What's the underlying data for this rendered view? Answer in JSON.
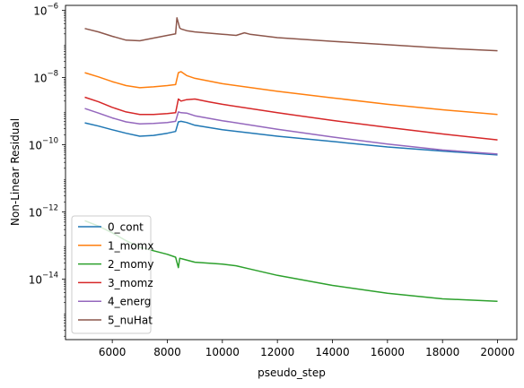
{
  "chart_data": {
    "type": "line",
    "xlabel": "pseudo_step",
    "ylabel": "Non-Linear Residual",
    "xlim": [
      4300,
      20700
    ],
    "ylim_log10": [
      -15.8,
      -5.85
    ],
    "yscale": "log",
    "grid": false,
    "legend_placement": "lower-left",
    "x_ticks": [
      6000,
      8000,
      10000,
      12000,
      14000,
      16000,
      18000,
      20000
    ],
    "x_tick_labels": [
      "6000",
      "8000",
      "10000",
      "12000",
      "14000",
      "16000",
      "18000",
      "20000"
    ],
    "y_ticks_log10": [
      -14,
      -12,
      -10,
      -8,
      -6
    ],
    "y_tick_bases": [
      "10",
      "10",
      "10",
      "10",
      "10"
    ],
    "y_tick_exponents": [
      "−14",
      "−12",
      "−10",
      "−8",
      "−6"
    ],
    "series": [
      {
        "name": "0_cont",
        "color": "#1f77b4",
        "x": [
          5000,
          5500,
          6000,
          6500,
          7000,
          7500,
          8000,
          8300,
          8400,
          8500,
          8700,
          9000,
          10000,
          12000,
          14000,
          16000,
          18000,
          20000
        ],
        "y": [
          4.5e-10,
          3.6e-10,
          2.8e-10,
          2.2e-10,
          1.8e-10,
          1.9e-10,
          2.2e-10,
          2.5e-10,
          4.8e-10,
          5e-10,
          4.6e-10,
          3.8e-10,
          2.8e-10,
          1.8e-10,
          1.25e-10,
          8.6e-11,
          6.5e-11,
          5e-11
        ]
      },
      {
        "name": "1_momx",
        "color": "#ff7f0e",
        "x": [
          5000,
          5500,
          6000,
          6500,
          7000,
          7500,
          8000,
          8300,
          8400,
          8500,
          8700,
          9000,
          10000,
          12000,
          14000,
          16000,
          18000,
          20000
        ],
        "y": [
          1.4e-08,
          1.05e-08,
          7.6e-09,
          5.8e-09,
          5e-09,
          5.3e-09,
          5.8e-09,
          6.2e-09,
          1.4e-08,
          1.5e-08,
          1.15e-08,
          9.5e-09,
          6.6e-09,
          3.9e-09,
          2.5e-09,
          1.6e-09,
          1.1e-09,
          8e-10
        ]
      },
      {
        "name": "2_momy",
        "color": "#2ca02c",
        "x": [
          5000,
          5500,
          6000,
          6500,
          7000,
          7500,
          8000,
          8300,
          8400,
          8450,
          8550,
          9000,
          10000,
          10500,
          11000,
          12000,
          14000,
          16000,
          18000,
          20000
        ],
        "y": [
          5.5e-13,
          3.8e-13,
          2.4e-13,
          1.4e-13,
          9e-14,
          7e-14,
          5.5e-14,
          4.5e-14,
          2.2e-14,
          4.2e-14,
          4e-14,
          3.2e-14,
          2.8e-14,
          2.5e-14,
          2e-14,
          1.3e-14,
          6.5e-15,
          3.8e-15,
          2.6e-15,
          2.2e-15
        ]
      },
      {
        "name": "3_momz",
        "color": "#d62728",
        "x": [
          5000,
          5500,
          6000,
          6500,
          7000,
          7500,
          8000,
          8300,
          8400,
          8500,
          8700,
          9000,
          9500,
          10000,
          12000,
          14000,
          16000,
          18000,
          20000
        ],
        "y": [
          2.6e-09,
          1.9e-09,
          1.3e-09,
          9.5e-10,
          8e-10,
          8e-10,
          8.5e-10,
          9e-10,
          2.3e-09,
          2e-09,
          2.2e-09,
          2.3e-09,
          1.9e-09,
          1.6e-09,
          9e-10,
          5.3e-10,
          3.3e-10,
          2.1e-10,
          1.4e-10
        ]
      },
      {
        "name": "4_energ",
        "color": "#9467bd",
        "x": [
          5000,
          5500,
          6000,
          6500,
          7000,
          7500,
          8000,
          8300,
          8400,
          8500,
          8700,
          9000,
          10000,
          12000,
          14000,
          16000,
          18000,
          20000
        ],
        "y": [
          1.2e-09,
          8.8e-10,
          6.3e-10,
          4.8e-10,
          4.2e-10,
          4.3e-10,
          4.6e-10,
          5e-10,
          9.5e-10,
          9e-10,
          8.8e-10,
          7.3e-10,
          5.2e-10,
          2.9e-10,
          1.7e-10,
          1.05e-10,
          7e-11,
          5.3e-11
        ]
      },
      {
        "name": "5_nuHat",
        "color": "#8c564b",
        "x": [
          5000,
          5500,
          6000,
          6500,
          7000,
          7500,
          8000,
          8300,
          8350,
          8450,
          8500,
          8700,
          9000,
          10000,
          10500,
          10800,
          11000,
          12000,
          14000,
          16000,
          18000,
          20000
        ],
        "y": [
          2.9e-07,
          2.3e-07,
          1.7e-07,
          1.3e-07,
          1.25e-07,
          1.5e-07,
          1.8e-07,
          2e-07,
          6e-07,
          3e-07,
          2.8e-07,
          2.5e-07,
          2.3e-07,
          1.95e-07,
          1.8e-07,
          2.15e-07,
          1.95e-07,
          1.55e-07,
          1.2e-07,
          9.5e-08,
          7.5e-08,
          6.3e-08
        ]
      }
    ]
  }
}
